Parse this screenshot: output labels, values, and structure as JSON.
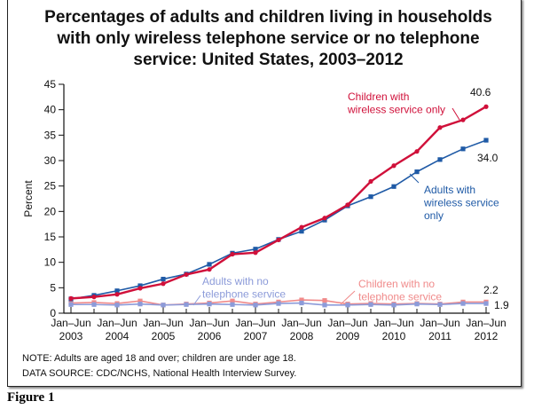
{
  "chart_data": {
    "type": "line",
    "title": "Percentages of adults and children living in households with only wireless telephone service or no telephone service: United States, 2003–2012",
    "ylabel": "Percent",
    "xlabel": "",
    "ylim": [
      0,
      45
    ],
    "yticks": [
      "0",
      "5",
      "10",
      "15",
      "20",
      "25",
      "30",
      "35",
      "40",
      "45"
    ],
    "xticks": [
      [
        "Jan–Jun",
        "2003"
      ],
      [
        "Jan–Jun",
        "2004"
      ],
      [
        "Jan–Jun",
        "2005"
      ],
      [
        "Jan–Jun",
        "2006"
      ],
      [
        "Jan–Jun",
        "2007"
      ],
      [
        "Jan–Jun",
        "2008"
      ],
      [
        "Jan–Jun",
        "2009"
      ],
      [
        "Jan–Jun",
        "2010"
      ],
      [
        "Jan–Jun",
        "2011"
      ],
      [
        "Jan–Jun",
        "2012"
      ]
    ],
    "x": [
      "2003 H1",
      "2003 H2",
      "2004 H1",
      "2004 H2",
      "2005 H1",
      "2005 H2",
      "2006 H1",
      "2006 H2",
      "2007 H1",
      "2007 H2",
      "2008 H1",
      "2008 H2",
      "2009 H1",
      "2009 H2",
      "2010 H1",
      "2010 H2",
      "2011 H1",
      "2011 H2",
      "2012 H1"
    ],
    "grid": false,
    "series": [
      {
        "name": "Children with wireless service only",
        "color": "#d0103a",
        "marker": "circle",
        "values": [
          2.9,
          3.2,
          3.7,
          4.9,
          5.8,
          7.6,
          8.6,
          11.6,
          11.9,
          14.4,
          16.9,
          18.7,
          21.3,
          25.9,
          29.0,
          31.8,
          36.5,
          38.0,
          40.6
        ],
        "end_label": "40.6"
      },
      {
        "name": "Adults with wireless service only",
        "color": "#1f5aa6",
        "marker": "square",
        "values": [
          2.8,
          3.5,
          4.4,
          5.4,
          6.7,
          7.7,
          9.6,
          11.8,
          12.6,
          14.5,
          16.1,
          18.3,
          21.1,
          22.9,
          24.9,
          27.8,
          30.2,
          32.3,
          34.0
        ],
        "end_label": "34.0"
      },
      {
        "name": "Children with no telephone service",
        "color": "#f08a8a",
        "marker": "square",
        "values": [
          2.0,
          2.1,
          1.9,
          2.4,
          1.6,
          1.8,
          2.0,
          2.4,
          1.8,
          2.2,
          2.6,
          2.5,
          1.8,
          1.9,
          1.8,
          1.9,
          1.8,
          2.2,
          2.2
        ],
        "end_label": "2.2"
      },
      {
        "name": "Adults with no telephone service",
        "color": "#8c9bd9",
        "marker": "square",
        "values": [
          1.7,
          1.7,
          1.6,
          1.8,
          1.6,
          1.7,
          1.8,
          1.7,
          1.6,
          1.9,
          2.0,
          1.6,
          1.6,
          1.7,
          1.6,
          1.8,
          1.7,
          1.9,
          1.9
        ],
        "end_label": "1.9"
      }
    ],
    "series_labels": [
      [
        "Children with",
        "wireless service only"
      ],
      [
        "Adults with",
        "wireless service",
        "only"
      ],
      [
        "Children with no",
        "telephone service"
      ],
      [
        "Adults with no",
        "telephone service"
      ]
    ]
  },
  "notes": {
    "note": "NOTE: Adults are aged 18 and over; children are under age 18.",
    "source": "DATA SOURCE: CDC/NCHS, National Health Interview Survey."
  },
  "figure_label": "Figure 1"
}
